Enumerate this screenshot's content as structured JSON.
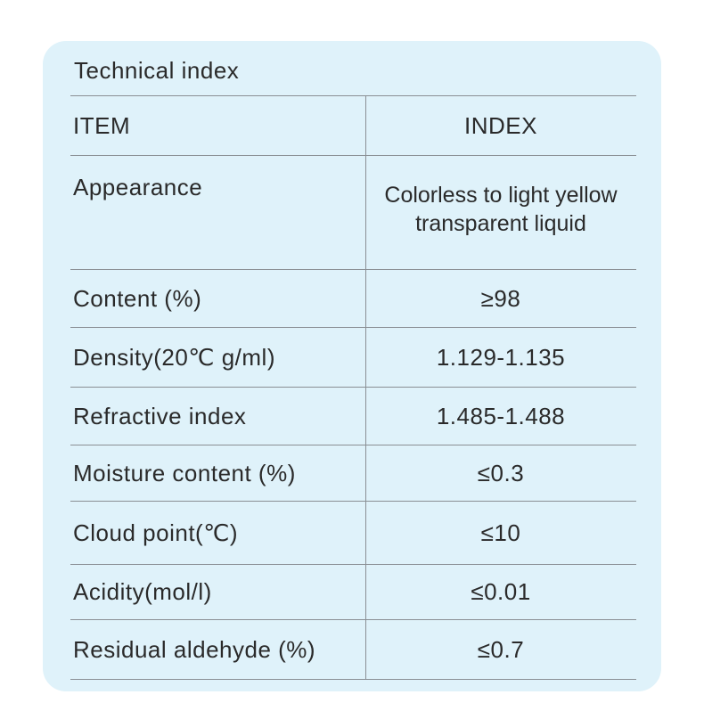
{
  "title": "Technical index",
  "table": {
    "headers": {
      "item": "ITEM",
      "index": "INDEX"
    },
    "rows": [
      {
        "item": "Appearance",
        "index": "Colorless to light yellow transparent liquid"
      },
      {
        "item": "Content (%)",
        "index": "≥98"
      },
      {
        "item": "Density(20℃ g/ml)",
        "index": "1.129-1.135"
      },
      {
        "item": "Refractive index",
        "index": "1.485-1.488"
      },
      {
        "item": "Moisture content (%)",
        "index": "≤0.3"
      },
      {
        "item": "Cloud point(℃)",
        "index": "≤10"
      },
      {
        "item": "Acidity(mol/l)",
        "index": "≤0.01"
      },
      {
        "item": "Residual aldehyde (%)",
        "index": "≤0.7"
      }
    ]
  },
  "colors": {
    "panel_background": "#dff2fa",
    "rule": "#8a8f94",
    "text": "#2a2a2a"
  }
}
